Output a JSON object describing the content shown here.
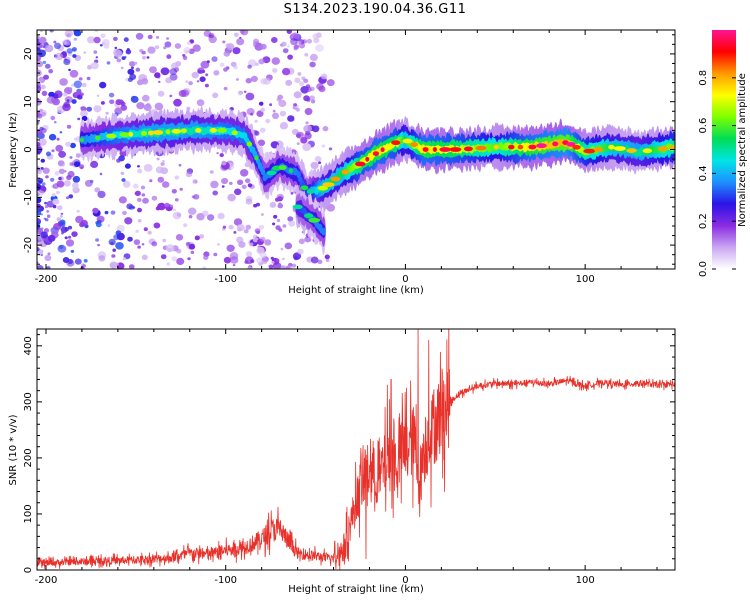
{
  "title": "S134.2023.190.04.36.G11",
  "chart_data": [
    {
      "type": "heatmap",
      "xlabel": "Height of straight line (km)",
      "ylabel": "Frequency (Hz)",
      "xlim": [
        -205,
        150
      ],
      "ylim": [
        -25,
        25
      ],
      "xticks": [
        -200,
        -100,
        0,
        100
      ],
      "yticks": [
        -20,
        -10,
        0,
        10,
        20
      ],
      "colorbar": {
        "label": "Normalized spectral amplitude",
        "range": [
          0,
          1
        ],
        "ticks": [
          0.0,
          0.2,
          0.4,
          0.6,
          0.8
        ],
        "colors": [
          "#ffffff",
          "#c9a6f2",
          "#8a2be2",
          "#2a14e6",
          "#1e90ff",
          "#00e5e5",
          "#00dd55",
          "#7fff00",
          "#ffff00",
          "#ff9900",
          "#ff0000",
          "#ff1493"
        ]
      },
      "ridge": [
        {
          "x": -180,
          "f": 2,
          "a": 0.35
        },
        {
          "x": -160,
          "f": 3,
          "a": 0.45
        },
        {
          "x": -140,
          "f": 3.5,
          "a": 0.5
        },
        {
          "x": -120,
          "f": 4,
          "a": 0.5
        },
        {
          "x": -100,
          "f": 4,
          "a": 0.45
        },
        {
          "x": -90,
          "f": 3,
          "a": 0.45
        },
        {
          "x": -85,
          "f": 0,
          "a": 0.4
        },
        {
          "x": -78,
          "f": -6,
          "a": 0.35
        },
        {
          "x": -70,
          "f": -3.5,
          "a": 0.35
        },
        {
          "x": -60,
          "f": -5,
          "a": 0.35
        },
        {
          "x": -55,
          "f": -9,
          "a": 0.3
        },
        {
          "x": -45,
          "f": -8,
          "a": 0.55
        },
        {
          "x": -35,
          "f": -5,
          "a": 0.55
        },
        {
          "x": -25,
          "f": -3,
          "a": 0.7
        },
        {
          "x": -15,
          "f": -0.5,
          "a": 0.75
        },
        {
          "x": -5,
          "f": 1.5,
          "a": 0.7
        },
        {
          "x": 0,
          "f": 2,
          "a": 0.55
        },
        {
          "x": 10,
          "f": 0,
          "a": 0.75
        },
        {
          "x": 30,
          "f": 0,
          "a": 0.7
        },
        {
          "x": 50,
          "f": 0.5,
          "a": 0.6
        },
        {
          "x": 70,
          "f": 0.5,
          "a": 0.75
        },
        {
          "x": 90,
          "f": 1.5,
          "a": 0.8
        },
        {
          "x": 100,
          "f": -0.5,
          "a": 0.65
        },
        {
          "x": 115,
          "f": 0.5,
          "a": 0.55
        },
        {
          "x": 130,
          "f": -0.5,
          "a": 0.5
        },
        {
          "x": 150,
          "f": 0.5,
          "a": 0.65
        }
      ],
      "branch": [
        {
          "x": -60,
          "f": -12,
          "a": 0.3
        },
        {
          "x": -50,
          "f": -15,
          "a": 0.35
        },
        {
          "x": -45,
          "f": -17.5,
          "a": 0.35
        }
      ]
    },
    {
      "type": "line",
      "xlabel": "Height of straight line (km)",
      "ylabel": "SNR (10 * v/v)",
      "xlim": [
        -205,
        150
      ],
      "ylim": [
        0,
        430
      ],
      "xticks": [
        -200,
        -100,
        0,
        100
      ],
      "yticks": [
        0,
        100,
        200,
        300,
        400
      ],
      "color": "#e8312a",
      "x": [
        -205,
        -180,
        -150,
        -130,
        -120,
        -110,
        -100,
        -90,
        -80,
        -75,
        -70,
        -65,
        -60,
        -50,
        -40,
        -35,
        -30,
        -25,
        -20,
        -15,
        -10,
        -5,
        0,
        5,
        8,
        10,
        15,
        20,
        25,
        30,
        40,
        50,
        60,
        70,
        80,
        90,
        100,
        110,
        120,
        130,
        140,
        150
      ],
      "values": [
        12,
        15,
        18,
        22,
        30,
        28,
        35,
        40,
        55,
        70,
        75,
        50,
        30,
        25,
        20,
        35,
        90,
        150,
        180,
        160,
        200,
        190,
        220,
        230,
        150,
        210,
        250,
        280,
        300,
        315,
        328,
        333,
        332,
        335,
        332,
        338,
        328,
        335,
        330,
        334,
        330,
        332
      ],
      "spikes": [
        {
          "x": -18,
          "y": 230
        },
        {
          "x": -10,
          "y": 330
        },
        {
          "x": -8,
          "y": 340
        },
        {
          "x": 7,
          "y": 430
        },
        {
          "x": 8,
          "y": 95
        },
        {
          "x": 13,
          "y": 410
        },
        {
          "x": -22,
          "y": 20
        }
      ]
    }
  ]
}
